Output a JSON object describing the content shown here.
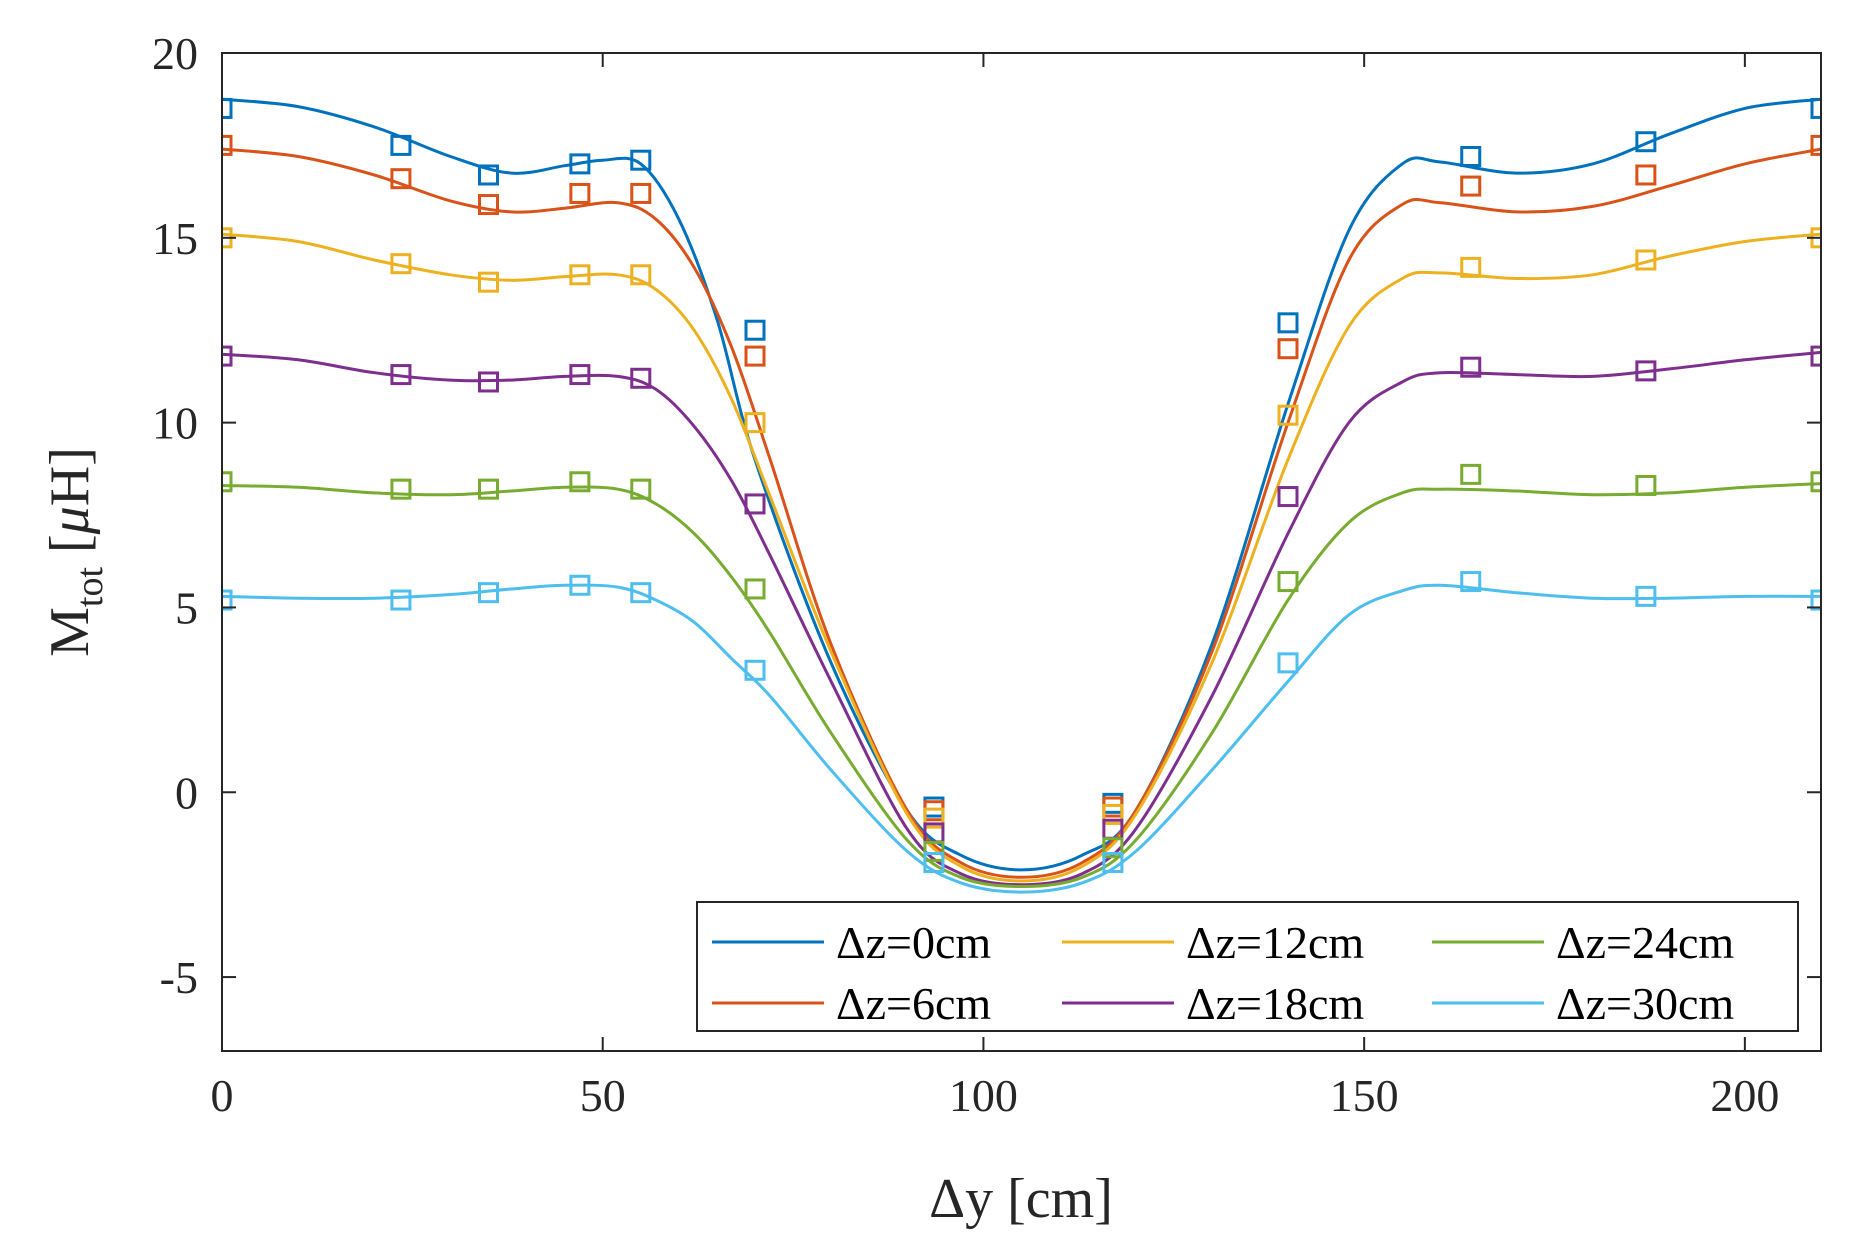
{
  "chart_data": {
    "type": "line",
    "title": "",
    "xlabel": "Δy [cm]",
    "ylabel": {
      "base": "M",
      "subscript": "tot",
      "unit_open": " [",
      "unit_mu": "μ",
      "unit_rest": "H]"
    },
    "xlim": [
      0,
      210
    ],
    "ylim": [
      -7,
      20
    ],
    "xticks": [
      0,
      50,
      100,
      150,
      200
    ],
    "xtick_labels": [
      "0",
      "50",
      "100",
      "150",
      "200"
    ],
    "yticks": [
      -5,
      0,
      5,
      10,
      15,
      20
    ],
    "ytick_labels": [
      "-5",
      "0",
      "5",
      "10",
      "15",
      "20"
    ],
    "grid": false,
    "legend_position": "bottom-right",
    "marker": "square",
    "x": [
      0,
      23.5,
      35,
      47,
      55,
      70,
      93.5,
      117,
      140,
      164,
      187,
      210
    ],
    "series": [
      {
        "name": "Δz=0cm",
        "color": "#0072BD",
        "values": [
          18.5,
          17.5,
          16.7,
          17.0,
          17.1,
          12.5,
          -0.4,
          -0.3,
          12.7,
          17.2,
          17.6,
          18.5
        ],
        "fit": [
          [
            0,
            18.75
          ],
          [
            10,
            18.55
          ],
          [
            20,
            18.0
          ],
          [
            30,
            17.2
          ],
          [
            38,
            16.75
          ],
          [
            45,
            16.95
          ],
          [
            50,
            17.1
          ],
          [
            55,
            17.0
          ],
          [
            60,
            15.5
          ],
          [
            65,
            12.8
          ],
          [
            70,
            9.0
          ],
          [
            80,
            3.5
          ],
          [
            90,
            -0.5
          ],
          [
            97,
            -1.7
          ],
          [
            105,
            -2.1
          ],
          [
            113,
            -1.7
          ],
          [
            120,
            -0.5
          ],
          [
            130,
            4.0
          ],
          [
            140,
            10.5
          ],
          [
            148,
            15.2
          ],
          [
            155,
            17.0
          ],
          [
            160,
            17.05
          ],
          [
            170,
            16.75
          ],
          [
            180,
            17.0
          ],
          [
            190,
            17.8
          ],
          [
            200,
            18.5
          ],
          [
            210,
            18.75
          ]
        ]
      },
      {
        "name": "Δz=6cm",
        "color": "#D95319",
        "values": [
          17.5,
          16.6,
          15.9,
          16.2,
          16.2,
          11.8,
          -0.5,
          -0.4,
          12.0,
          16.4,
          16.7,
          17.5
        ],
        "fit": [
          [
            0,
            17.4
          ],
          [
            10,
            17.2
          ],
          [
            20,
            16.7
          ],
          [
            30,
            16.0
          ],
          [
            38,
            15.7
          ],
          [
            45,
            15.8
          ],
          [
            52,
            15.95
          ],
          [
            57,
            15.5
          ],
          [
            62,
            14.2
          ],
          [
            67,
            12.0
          ],
          [
            72,
            9.0
          ],
          [
            80,
            4.0
          ],
          [
            90,
            -0.5
          ],
          [
            97,
            -1.9
          ],
          [
            105,
            -2.3
          ],
          [
            113,
            -1.9
          ],
          [
            120,
            -0.5
          ],
          [
            130,
            3.8
          ],
          [
            140,
            10.0
          ],
          [
            148,
            14.4
          ],
          [
            155,
            15.9
          ],
          [
            160,
            15.95
          ],
          [
            170,
            15.7
          ],
          [
            180,
            15.85
          ],
          [
            190,
            16.4
          ],
          [
            200,
            17.0
          ],
          [
            210,
            17.4
          ]
        ]
      },
      {
        "name": "Δz=12cm",
        "color": "#EDB120",
        "values": [
          15.0,
          14.3,
          13.8,
          14.0,
          14.0,
          10.0,
          -0.7,
          -0.6,
          10.2,
          14.2,
          14.4,
          15.0
        ],
        "fit": [
          [
            0,
            15.1
          ],
          [
            10,
            14.9
          ],
          [
            20,
            14.4
          ],
          [
            30,
            14.0
          ],
          [
            38,
            13.85
          ],
          [
            45,
            13.95
          ],
          [
            52,
            14.0
          ],
          [
            57,
            13.6
          ],
          [
            62,
            12.5
          ],
          [
            67,
            10.6
          ],
          [
            72,
            8.0
          ],
          [
            80,
            3.8
          ],
          [
            90,
            -0.6
          ],
          [
            97,
            -2.0
          ],
          [
            105,
            -2.4
          ],
          [
            113,
            -2.0
          ],
          [
            120,
            -0.6
          ],
          [
            130,
            3.5
          ],
          [
            140,
            9.0
          ],
          [
            148,
            12.6
          ],
          [
            155,
            13.9
          ],
          [
            160,
            14.05
          ],
          [
            170,
            13.9
          ],
          [
            180,
            14.0
          ],
          [
            190,
            14.5
          ],
          [
            200,
            14.9
          ],
          [
            210,
            15.1
          ]
        ]
      },
      {
        "name": "Δz=18cm",
        "color": "#7E2F8E",
        "values": [
          11.8,
          11.3,
          11.1,
          11.3,
          11.2,
          7.8,
          -1.1,
          -1.0,
          8.0,
          11.5,
          11.4,
          11.8
        ],
        "fit": [
          [
            0,
            11.85
          ],
          [
            10,
            11.7
          ],
          [
            20,
            11.35
          ],
          [
            30,
            11.15
          ],
          [
            38,
            11.15
          ],
          [
            45,
            11.25
          ],
          [
            52,
            11.25
          ],
          [
            57,
            10.9
          ],
          [
            62,
            9.9
          ],
          [
            67,
            8.4
          ],
          [
            72,
            6.4
          ],
          [
            80,
            3.0
          ],
          [
            90,
            -1.0
          ],
          [
            97,
            -2.2
          ],
          [
            105,
            -2.5
          ],
          [
            113,
            -2.2
          ],
          [
            120,
            -1.0
          ],
          [
            130,
            2.6
          ],
          [
            140,
            7.0
          ],
          [
            148,
            10.0
          ],
          [
            155,
            11.1
          ],
          [
            160,
            11.35
          ],
          [
            170,
            11.3
          ],
          [
            180,
            11.25
          ],
          [
            190,
            11.45
          ],
          [
            200,
            11.7
          ],
          [
            210,
            11.9
          ]
        ]
      },
      {
        "name": "Δz=24cm",
        "color": "#77AC30",
        "values": [
          8.4,
          8.2,
          8.2,
          8.4,
          8.2,
          5.5,
          -1.6,
          -1.5,
          5.7,
          8.6,
          8.3,
          8.4
        ],
        "fit": [
          [
            0,
            8.3
          ],
          [
            10,
            8.25
          ],
          [
            20,
            8.1
          ],
          [
            30,
            8.05
          ],
          [
            38,
            8.15
          ],
          [
            45,
            8.25
          ],
          [
            52,
            8.2
          ],
          [
            57,
            7.8
          ],
          [
            62,
            7.0
          ],
          [
            67,
            5.8
          ],
          [
            72,
            4.3
          ],
          [
            80,
            1.6
          ],
          [
            90,
            -1.3
          ],
          [
            97,
            -2.3
          ],
          [
            105,
            -2.55
          ],
          [
            113,
            -2.3
          ],
          [
            120,
            -1.3
          ],
          [
            130,
            1.6
          ],
          [
            140,
            5.2
          ],
          [
            148,
            7.3
          ],
          [
            155,
            8.1
          ],
          [
            160,
            8.2
          ],
          [
            170,
            8.15
          ],
          [
            180,
            8.05
          ],
          [
            190,
            8.1
          ],
          [
            200,
            8.25
          ],
          [
            210,
            8.35
          ]
        ]
      },
      {
        "name": "Δz=30cm",
        "color": "#4DBEEE",
        "values": [
          5.2,
          5.2,
          5.4,
          5.6,
          5.4,
          3.3,
          -1.9,
          -1.9,
          3.5,
          5.7,
          5.3,
          5.2
        ],
        "fit": [
          [
            0,
            5.3
          ],
          [
            10,
            5.25
          ],
          [
            20,
            5.25
          ],
          [
            30,
            5.35
          ],
          [
            38,
            5.5
          ],
          [
            45,
            5.6
          ],
          [
            52,
            5.55
          ],
          [
            57,
            5.2
          ],
          [
            62,
            4.6
          ],
          [
            67,
            3.6
          ],
          [
            72,
            2.6
          ],
          [
            80,
            0.6
          ],
          [
            90,
            -1.6
          ],
          [
            97,
            -2.45
          ],
          [
            105,
            -2.7
          ],
          [
            113,
            -2.45
          ],
          [
            120,
            -1.6
          ],
          [
            130,
            0.6
          ],
          [
            140,
            3.0
          ],
          [
            148,
            4.8
          ],
          [
            155,
            5.45
          ],
          [
            160,
            5.6
          ],
          [
            170,
            5.4
          ],
          [
            180,
            5.25
          ],
          [
            190,
            5.25
          ],
          [
            200,
            5.3
          ],
          [
            210,
            5.3
          ]
        ]
      }
    ]
  }
}
